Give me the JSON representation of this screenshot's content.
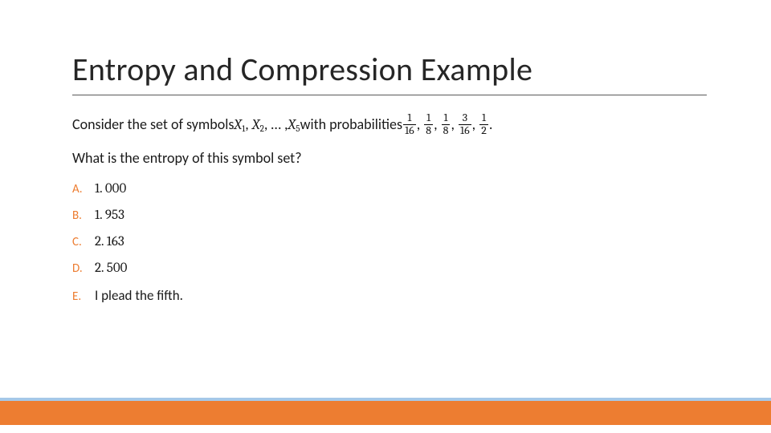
{
  "title": "Entropy and Compression Example",
  "question": {
    "prefix": "Consider the set of symbols ",
    "sym": "X",
    "subs": [
      "1",
      "2",
      "5"
    ],
    "ellipsis": ", … , ",
    "mid": " with probabilities ",
    "fractions": [
      {
        "num": "1",
        "den": "16"
      },
      {
        "num": "1",
        "den": "8"
      },
      {
        "num": "1",
        "den": "8"
      },
      {
        "num": "3",
        "den": "16"
      },
      {
        "num": "1",
        "den": "2"
      }
    ],
    "period": ".",
    "line2": "What is the entropy of this symbol set?"
  },
  "options": [
    {
      "letter": "A.",
      "value": "1. 000",
      "is_text": false
    },
    {
      "letter": "B.",
      "value": "1. 953",
      "is_text": false
    },
    {
      "letter": "C.",
      "value": "2. 163",
      "is_text": false
    },
    {
      "letter": "D.",
      "value": "2. 500",
      "is_text": false
    },
    {
      "letter": "E.",
      "value": "I plead the fifth.",
      "is_text": true
    }
  ],
  "colors": {
    "accent_orange": "#ed7d31",
    "accent_blue": "#5b9bd5",
    "text_dark": "#262626",
    "rule": "#595959"
  }
}
